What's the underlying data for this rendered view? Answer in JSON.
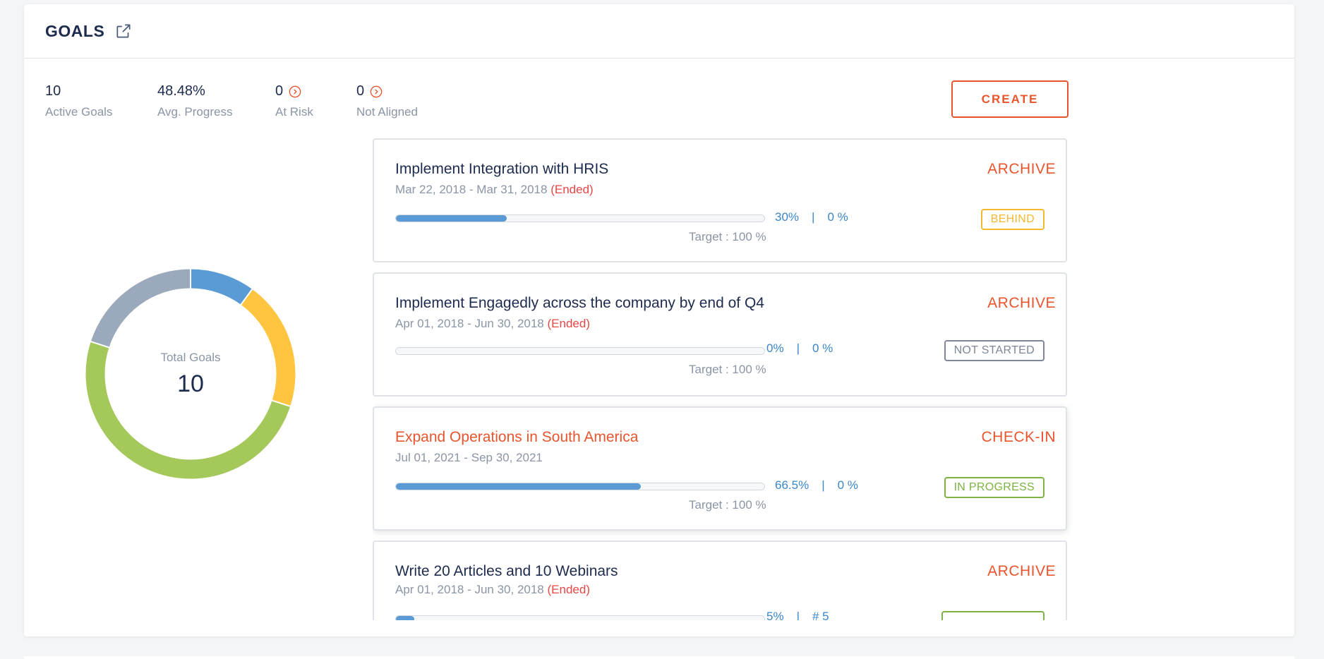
{
  "header": {
    "title": "GOALS",
    "external_link_icon": "external-link-icon"
  },
  "stats": [
    {
      "value": "10",
      "label": "Active Goals"
    },
    {
      "value": "48.48%",
      "label": "Avg. Progress"
    },
    {
      "value": "0",
      "label": "At Risk",
      "icon": "chevron-right-circle-icon"
    },
    {
      "value": "0",
      "label": "Not Aligned",
      "icon": "chevron-right-circle-icon"
    }
  ],
  "create_label": "CREATE",
  "donut": {
    "label": "Total Goals",
    "value": "10",
    "segments": [
      {
        "fraction": 0.1,
        "color": "#5b9bd5"
      },
      {
        "fraction": 0.2,
        "color": "#ffc540"
      },
      {
        "fraction": 0.5,
        "color": "#a5c85a"
      },
      {
        "fraction": 0.2,
        "color": "#9aa9bb"
      }
    ]
  },
  "goals": [
    {
      "title": "Implement Integration with HRIS",
      "dates": "Mar 22, 2018 - Mar 31, 2018",
      "ended": "(Ended)",
      "action": "ARCHIVE",
      "progress": 0.3,
      "progress_label": "30%",
      "sep": "|",
      "secondary": "0 %",
      "target": "Target : 100 %",
      "status": "BEHIND",
      "status_color": "#f5b82e",
      "active": false
    },
    {
      "title": "Implement Engagedly across the company by end of Q4",
      "dates": "Apr 01, 2018 - Jun 30, 2018",
      "ended": "(Ended)",
      "action": "ARCHIVE",
      "progress": 0.0,
      "progress_label": "0%",
      "sep": "|",
      "secondary": "0 %",
      "target": "Target : 100 %",
      "status": "NOT STARTED",
      "status_color": "#7d8796",
      "active": false
    },
    {
      "title": "Expand Operations in South America",
      "dates": "Jul 01, 2021 - Sep 30, 2021",
      "ended": "",
      "action": "CHECK-IN",
      "progress": 0.665,
      "progress_label": "66.5%",
      "sep": "|",
      "secondary": "0 %",
      "target": "Target : 100 %",
      "status": "IN PROGRESS",
      "status_color": "#7cb342",
      "active": true
    },
    {
      "title": "Write 20 Articles and 10 Webinars",
      "dates": "Apr 01, 2018 - Jun 30, 2018",
      "ended": "(Ended)",
      "action": "ARCHIVE",
      "progress": 0.05,
      "progress_label": "5%",
      "sep": "|",
      "secondary": "# 5",
      "target": "",
      "status": "",
      "status_color": "#7cb342",
      "active": false
    }
  ]
}
